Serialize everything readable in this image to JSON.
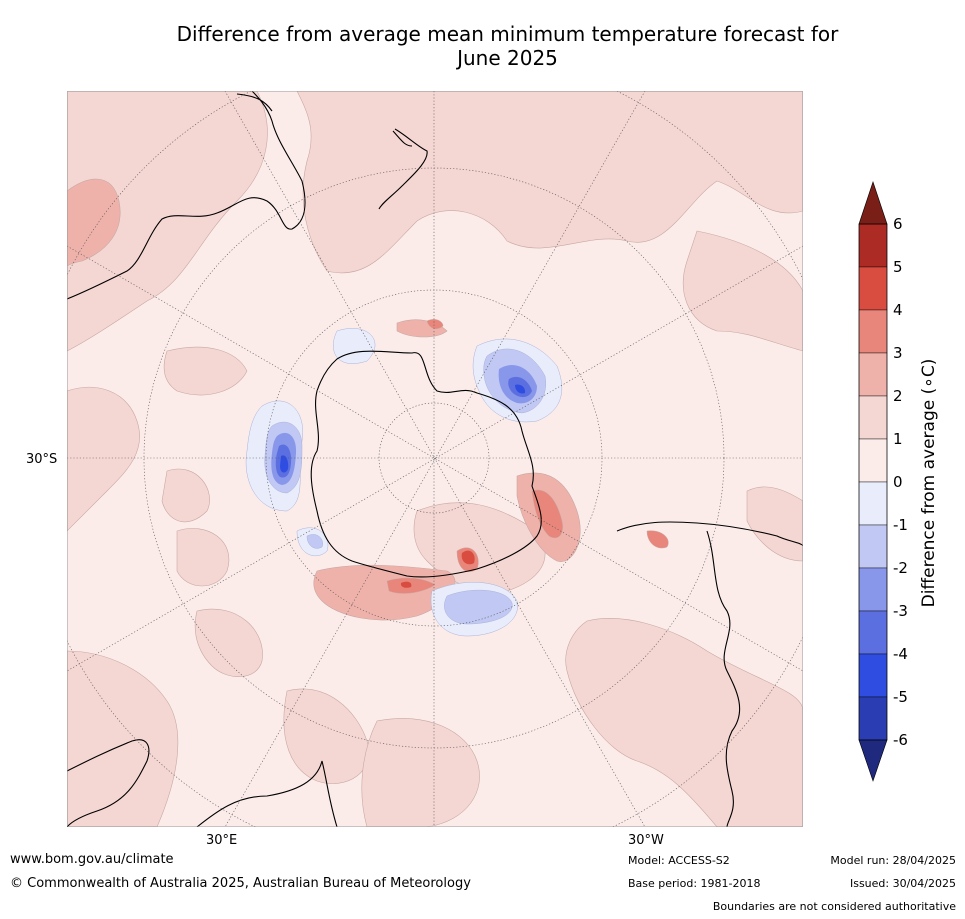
{
  "title_line1": "Difference from average mean minimum temperature forecast for",
  "title_line2": "June 2025",
  "map": {
    "projection": "south-polar stereographic",
    "lat_label": "30°S",
    "lon_labels": {
      "east": "30°E",
      "west": "30°W"
    }
  },
  "colorbar": {
    "title": "Difference from average (∘C)",
    "ticks": [
      "6",
      "5",
      "4",
      "3",
      "2",
      "1",
      "0",
      "-1",
      "-2",
      "-3",
      "-4",
      "-5",
      "-6"
    ],
    "bands": [
      {
        "range": "5 to 6",
        "color": "#ac2b24"
      },
      {
        "range": "4 to 5",
        "color": "#d94c40"
      },
      {
        "range": "3 to 4",
        "color": "#e8867b"
      },
      {
        "range": "2 to 3",
        "color": "#eeb2ab"
      },
      {
        "range": "1 to 2",
        "color": "#f4d6d3"
      },
      {
        "range": "0 to 1",
        "color": "#fbecea"
      },
      {
        "range": "-1 to 0",
        "color": "#e9ecfb"
      },
      {
        "range": "-2 to -1",
        "color": "#c1c8f3"
      },
      {
        "range": "-3 to -2",
        "color": "#8897ea"
      },
      {
        "range": "-4 to -3",
        "color": "#5c6fe0"
      },
      {
        "range": "-5 to -4",
        "color": "#2f4de0"
      },
      {
        "range": "-6 to -5",
        "color": "#2a3db2"
      }
    ],
    "over_color": "#7a1f17",
    "under_color": "#1f2a7e"
  },
  "footer": {
    "website": "www.bom.gov.au/climate",
    "copyright": "© Commonwealth of Australia 2025, Australian Bureau of Meteorology",
    "model": "Model: ACCESS-S2",
    "base_period": "Base period: 1981-2018",
    "model_run": "Model run: 28/04/2025",
    "issued": "Issued: 30/04/2025",
    "disclaimer": "Boundaries are not considered authoritative"
  }
}
